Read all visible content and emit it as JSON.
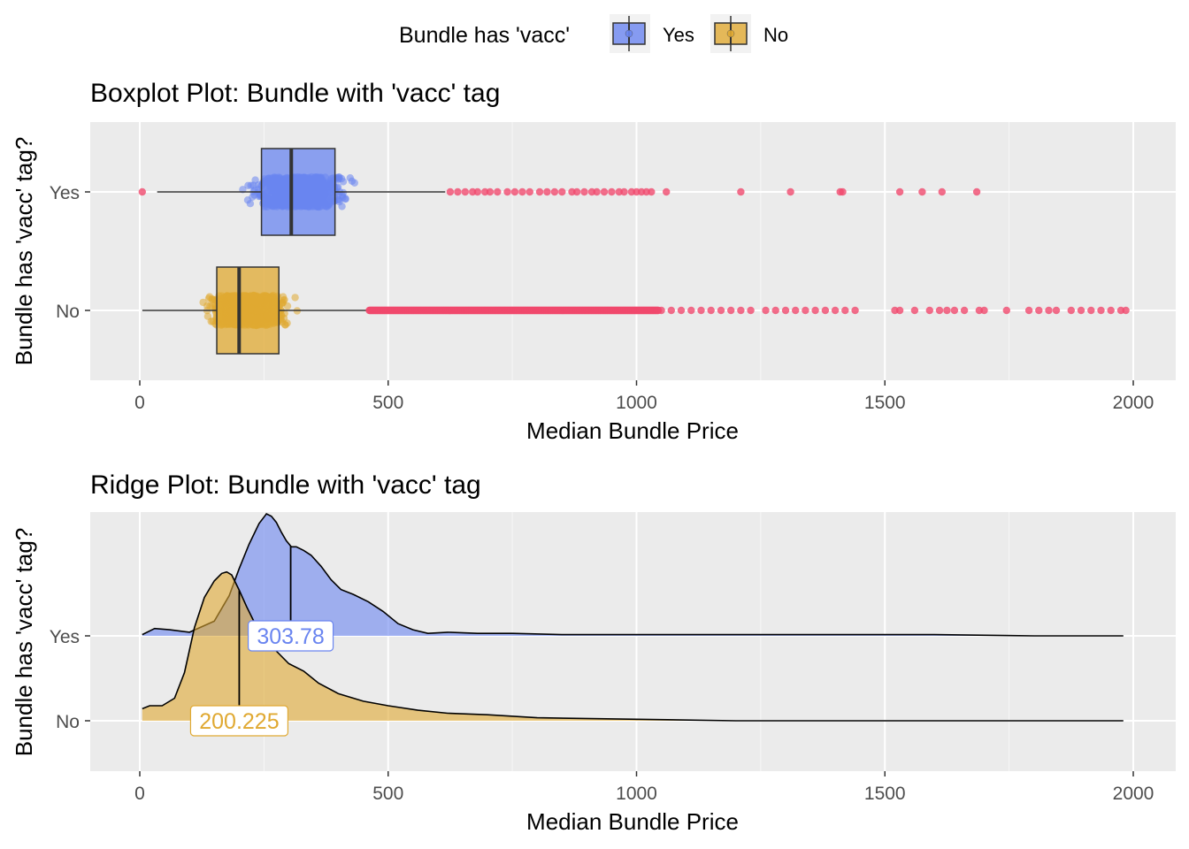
{
  "legend": {
    "title": "Bundle has 'vacc'",
    "items": [
      {
        "label": "Yes",
        "color": "#6a85f0"
      },
      {
        "label": "No",
        "color": "#e0a932"
      }
    ]
  },
  "colors": {
    "panel_bg": "#ebebeb",
    "grid": "#ffffff",
    "outlier": "#f04a6e",
    "yes": "#6a85f0",
    "no": "#e0a932"
  },
  "chart_data": [
    {
      "type": "boxplot",
      "title": "Boxplot Plot: Bundle with 'vacc' tag",
      "xlabel": "Median Bundle Price",
      "ylabel": "Bundle has 'vacc' tag?",
      "xlim": [
        -100,
        2080
      ],
      "xticks": [
        "0",
        "500",
        "1000",
        "1500",
        "2000"
      ],
      "categories": [
        "Yes",
        "No"
      ],
      "grid": true,
      "series": [
        {
          "name": "Yes",
          "whisker_low": 35,
          "q1": 245,
          "median": 305,
          "q3": 393,
          "whisker_high": 615,
          "points_range": [
            110,
            530
          ],
          "outliers": [
            5,
            625,
            640,
            655,
            670,
            680,
            695,
            705,
            720,
            740,
            755,
            770,
            785,
            805,
            820,
            835,
            850,
            870,
            880,
            895,
            910,
            920,
            935,
            950,
            965,
            975,
            990,
            1000,
            1010,
            1020,
            1030,
            1060,
            1210,
            1310,
            1410,
            1415,
            1530,
            1575,
            1615,
            1685
          ]
        },
        {
          "name": "No",
          "whisker_low": 5,
          "q1": 155,
          "median": 200,
          "q3": 280,
          "whisker_high": 460,
          "points_range": [
            10,
            390
          ],
          "outliers": [
            1050,
            1070,
            1090,
            1110,
            1130,
            1150,
            1170,
            1190,
            1210,
            1230,
            1260,
            1280,
            1300,
            1320,
            1340,
            1360,
            1380,
            1400,
            1420,
            1440,
            1520,
            1530,
            1560,
            1590,
            1610,
            1625,
            1640,
            1660,
            1690,
            1700,
            1745,
            1790,
            1810,
            1830,
            1845,
            1875,
            1895,
            1915,
            1935,
            1955,
            1975,
            1985
          ],
          "outlier_band": [
            462,
            1045
          ]
        }
      ]
    },
    {
      "type": "area",
      "title": "Ridge Plot: Bundle with 'vacc' tag",
      "xlabel": "Median Bundle Price",
      "ylabel": "Bundle has 'vacc' tag?",
      "xlim": [
        -100,
        2080
      ],
      "xticks": [
        "0",
        "500",
        "1000",
        "1500",
        "2000"
      ],
      "categories": [
        "Yes",
        "No"
      ],
      "grid": true,
      "series": [
        {
          "name": "Yes",
          "median_label": "303.78",
          "median": 303.78,
          "x": [
            5,
            30,
            60,
            100,
            150,
            180,
            200,
            220,
            240,
            255,
            265,
            275,
            285,
            295,
            305,
            315,
            330,
            345,
            365,
            385,
            405,
            430,
            460,
            490,
            520,
            550,
            580,
            620,
            680,
            750,
            850,
            1000,
            1200,
            1400,
            1600,
            1800,
            1980
          ],
          "density": [
            0.01,
            0.06,
            0.05,
            0.03,
            0.12,
            0.33,
            0.55,
            0.75,
            0.92,
            1.0,
            0.98,
            0.93,
            0.85,
            0.78,
            0.73,
            0.73,
            0.7,
            0.66,
            0.57,
            0.46,
            0.38,
            0.34,
            0.28,
            0.2,
            0.1,
            0.05,
            0.02,
            0.03,
            0.02,
            0.02,
            0.01,
            0.01,
            0.01,
            0.01,
            0.01,
            0.0,
            0.0
          ]
        },
        {
          "name": "No",
          "median_label": "200.225",
          "median": 200.225,
          "x": [
            5,
            20,
            45,
            70,
            90,
            110,
            130,
            150,
            165,
            175,
            185,
            200,
            215,
            230,
            250,
            270,
            300,
            330,
            360,
            400,
            450,
            500,
            560,
            620,
            700,
            800,
            1000,
            1200,
            1400,
            1600,
            1800,
            1980
          ],
          "density": [
            0.08,
            0.1,
            0.1,
            0.15,
            0.32,
            0.62,
            0.82,
            0.93,
            0.98,
            0.99,
            0.97,
            0.87,
            0.76,
            0.66,
            0.56,
            0.48,
            0.38,
            0.33,
            0.25,
            0.18,
            0.13,
            0.1,
            0.07,
            0.05,
            0.04,
            0.02,
            0.01,
            0.0,
            0.0,
            0.0,
            0.0,
            0.0
          ]
        }
      ]
    }
  ]
}
